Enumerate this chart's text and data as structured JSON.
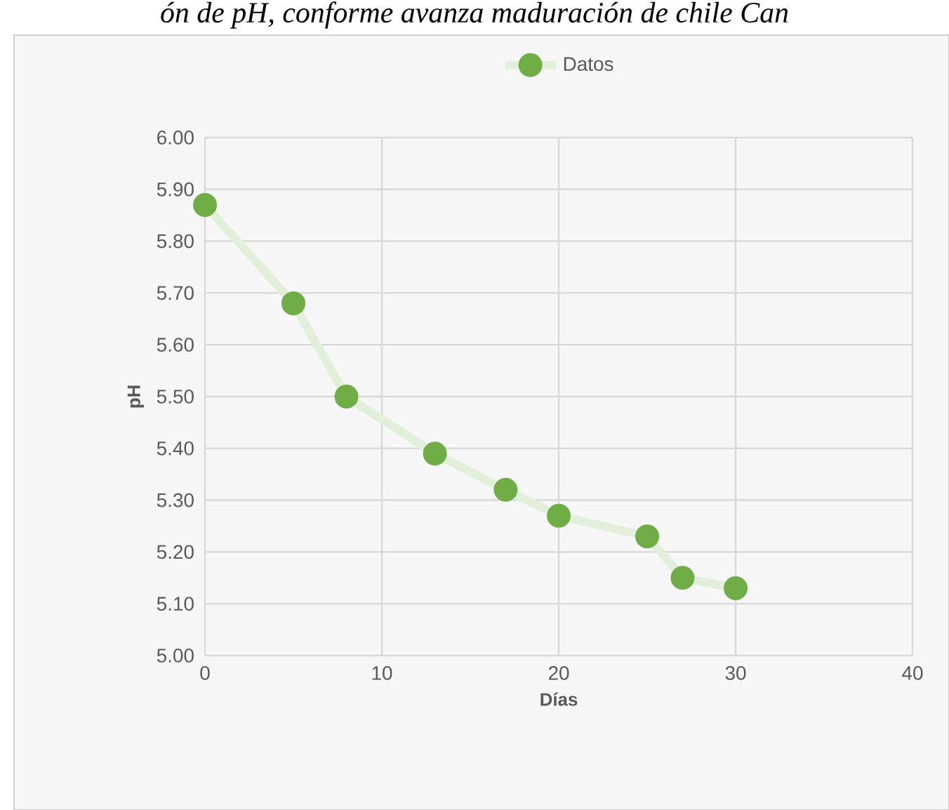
{
  "chart_data": {
    "type": "line",
    "title": "ón de pH, conforme avanza maduración de chile Can",
    "xlabel": "Días",
    "ylabel": "pH",
    "x": [
      0,
      5,
      8,
      13,
      17,
      20,
      25,
      27,
      30
    ],
    "series": [
      {
        "name": "Datos",
        "color": "#70ad47",
        "values": [
          5.87,
          5.68,
          5.5,
          5.39,
          5.32,
          5.27,
          5.23,
          5.15,
          5.13
        ]
      }
    ],
    "xlim": [
      0,
      40
    ],
    "xticks": [
      0,
      10,
      20,
      30,
      40
    ],
    "ylim": [
      5,
      6
    ],
    "yticks": [
      {
        "value": 5,
        "label": "5.00"
      },
      {
        "value": 5.1,
        "label": "5.10"
      },
      {
        "value": 5.2,
        "label": "5.20"
      },
      {
        "value": 5.3,
        "label": "5.30"
      },
      {
        "value": 5.4,
        "label": "5.40"
      },
      {
        "value": 5.5,
        "label": "5.50"
      },
      {
        "value": 5.6,
        "label": "5.60"
      },
      {
        "value": 5.7,
        "label": "5.70"
      },
      {
        "value": 5.8,
        "label": "5.80"
      },
      {
        "value": 5.9,
        "label": "5.90"
      },
      {
        "value": 6,
        "label": "6.00"
      }
    ],
    "grid": true,
    "legend": "top",
    "marker": "circle",
    "line_style": "solid"
  }
}
